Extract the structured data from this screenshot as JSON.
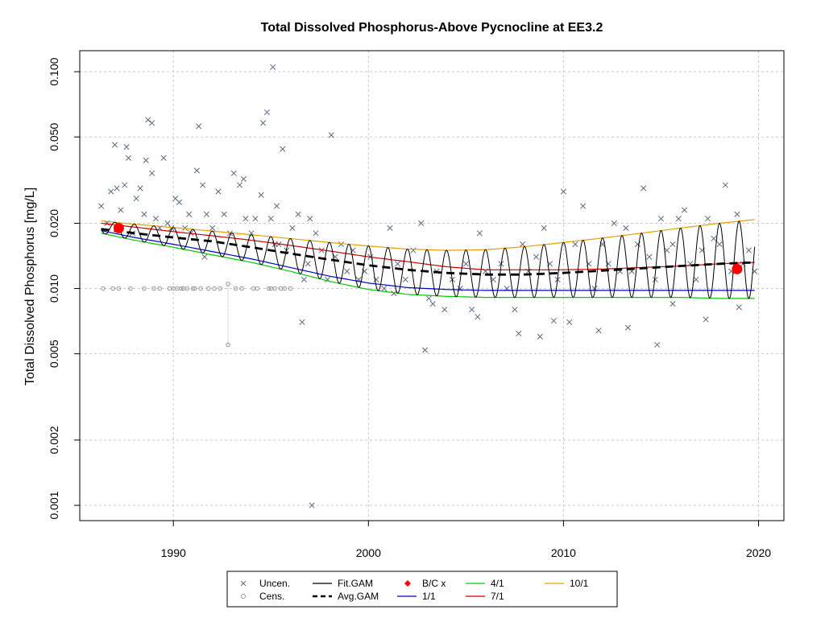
{
  "chart_data": {
    "type": "scatter",
    "title": "Total Dissolved Phosphorus-Above Pycnocline at EE3.2",
    "ylabel": "Total Dissolved Phosphorus [mg/L]",
    "xlabel": "",
    "y_scale": "log",
    "xlim": [
      1985.2,
      2021.3
    ],
    "ylim": [
      0.00085,
      0.125
    ],
    "x_ticks": [
      "1990",
      "2000",
      "2010",
      "2020"
    ],
    "x_tick_values": [
      1990,
      2000,
      2010,
      2020
    ],
    "y_ticks": [
      "0.001",
      "0.002",
      "0.005",
      "0.010",
      "0.020",
      "0.050",
      "0.100"
    ],
    "y_tick_values": [
      0.001,
      0.002,
      0.005,
      0.01,
      0.02,
      0.05,
      0.1
    ],
    "grid": true,
    "legend_position": "bottom",
    "legend": [
      {
        "label": "Uncen.",
        "symbol": "x",
        "color": "#5a6a7e"
      },
      {
        "label": "Fit.GAM",
        "symbol": "line",
        "color": "#000000"
      },
      {
        "label": "B/C x",
        "symbol": "diamond",
        "color": "#ff0000"
      },
      {
        "label": "4/1",
        "symbol": "line",
        "color": "#00cc00"
      },
      {
        "label": "10/1",
        "symbol": "line",
        "color": "#e69f00"
      },
      {
        "label": "Cens.",
        "symbol": "circle",
        "color": "#999999"
      },
      {
        "label": "Avg.GAM",
        "symbol": "dashed",
        "color": "#000000"
      },
      {
        "label": "1/1",
        "symbol": "line",
        "color": "#0000cc"
      },
      {
        "label": "7/1",
        "symbol": "line",
        "color": "#cc0000"
      }
    ],
    "series": [
      {
        "name": "Avg.GAM",
        "color": "#000000",
        "style": "dashed",
        "x": [
          1986.3,
          1988,
          1990,
          1992,
          1994,
          1996,
          1998,
          2000,
          2002,
          2004,
          2006,
          2008,
          2010,
          2012,
          2014,
          2016,
          2018,
          2019.8
        ],
        "y": [
          0.0188,
          0.018,
          0.0172,
          0.0165,
          0.0155,
          0.0145,
          0.0136,
          0.0128,
          0.0122,
          0.0118,
          0.0116,
          0.0116,
          0.0118,
          0.0121,
          0.0124,
          0.0127,
          0.013,
          0.0132
        ]
      },
      {
        "name": "1/1",
        "color": "#0000cc",
        "style": "solid",
        "x": [
          1986.3,
          1988,
          1990,
          1992,
          1994,
          1996,
          1998,
          2000,
          2002,
          2004,
          2006,
          2008,
          2010,
          2012,
          2014,
          2016,
          2018,
          2019.8
        ],
        "y": [
          0.0185,
          0.0172,
          0.016,
          0.0148,
          0.0137,
          0.0125,
          0.0114,
          0.0106,
          0.0101,
          0.0099,
          0.0098,
          0.0098,
          0.0098,
          0.0098,
          0.0098,
          0.0098,
          0.0098,
          0.0098
        ]
      },
      {
        "name": "4/1",
        "color": "#00cc00",
        "style": "solid",
        "x": [
          1986.3,
          1988,
          1990,
          1992,
          1994,
          1996,
          1998,
          2000,
          2002,
          2004,
          2006,
          2008,
          2010,
          2012,
          2014,
          2016,
          2018,
          2019.8
        ],
        "y": [
          0.018,
          0.0167,
          0.0155,
          0.0143,
          0.0132,
          0.012,
          0.0108,
          0.0099,
          0.0094,
          0.0092,
          0.0091,
          0.0091,
          0.0091,
          0.0091,
          0.0091,
          0.0091,
          0.009,
          0.009
        ]
      },
      {
        "name": "7/1",
        "color": "#cc0000",
        "style": "solid",
        "x": [
          1986.3,
          1988,
          1990,
          1992,
          1994,
          1996,
          1998,
          2000,
          2002,
          2004,
          2006,
          2008,
          2010,
          2012,
          2014,
          2016,
          2018,
          2019.8
        ],
        "y": [
          0.02,
          0.0192,
          0.0183,
          0.0175,
          0.0167,
          0.0158,
          0.0149,
          0.014,
          0.0133,
          0.0126,
          0.0122,
          0.0122,
          0.0122,
          0.0123,
          0.0125,
          0.0127,
          0.013,
          0.0132
        ]
      },
      {
        "name": "10/1",
        "color": "#e69f00",
        "style": "solid",
        "x": [
          1986.3,
          1988,
          1990,
          1992,
          1994,
          1996,
          1998,
          2000,
          2002,
          2004,
          2006,
          2008,
          2010,
          2012,
          2014,
          2016,
          2018,
          2019.8
        ],
        "y": [
          0.0205,
          0.0198,
          0.0191,
          0.0184,
          0.0177,
          0.017,
          0.0163,
          0.0157,
          0.0152,
          0.015,
          0.0151,
          0.0156,
          0.0163,
          0.0171,
          0.018,
          0.019,
          0.02,
          0.0208
        ]
      }
    ],
    "fit_gam": {
      "name": "Fit.GAM",
      "color": "#000000",
      "x_start": 1986.3,
      "x_end": 2019.8,
      "period_years": 1.0,
      "lower": "4/1",
      "upper": "10/1"
    },
    "bc_points": {
      "name": "B/C x",
      "color": "#ff0000",
      "x": [
        1987.2,
        2018.9
      ],
      "y": [
        0.019,
        0.0123
      ]
    },
    "uncensored": {
      "name": "Uncen.",
      "color": "#5a6a7e",
      "x": [
        1986.3,
        1986.6,
        1986.8,
        1987.0,
        1987.1,
        1987.3,
        1987.5,
        1987.7,
        1987.9,
        1988.1,
        1988.3,
        1988.5,
        1988.7,
        1988.9,
        1989.1,
        1989.3,
        1989.5,
        1989.7,
        1989.9,
        1990.1,
        1990.3,
        1990.6,
        1990.9,
        1991.2,
        1991.5,
        1991.7,
        1992.0,
        1992.3,
        1992.6,
        1992.9,
        1993.1,
        1993.4,
        1993.7,
        1994.0,
        1994.2,
        1994.5,
        1994.8,
        1995.0,
        1995.2,
        1995.4,
        1995.6,
        1995.8,
        1996.1,
        1996.4,
        1996.7,
        1996.9,
        1997.0,
        1997.3,
        1997.6,
        1997.9,
        1998.1,
        1998.3,
        1998.6,
        1998.9,
        1999.2,
        1999.5,
        1999.8,
        2000.1,
        2000.4,
        2000.8,
        2001.1,
        2001.5,
        2001.9,
        2002.3,
        2002.7,
        2003.1,
        2003.5,
        2003.9,
        2004.3,
        2004.7,
        2005.0,
        2005.3,
        2005.7,
        2006.0,
        2006.4,
        2006.8,
        2007.1,
        2007.5,
        2007.9,
        2008.2,
        2008.6,
        2009.0,
        2009.3,
        2009.7,
        2010.0,
        2010.3,
        2010.6,
        2011.0,
        2011.3,
        2011.6,
        2012.0,
        2012.3,
        2012.6,
        2012.9,
        2013.2,
        2013.5,
        2013.8,
        2014.1,
        2014.4,
        2014.7,
        2015.0,
        2015.3,
        2015.6,
        2015.9,
        2016.2,
        2016.5,
        2016.8,
        2017.1,
        2017.4,
        2017.7,
        2018.0,
        2018.3,
        2018.6,
        2018.9,
        2019.2,
        2019.5,
        2019.8,
        1987.6,
        1988.6,
        1990.8,
        1991.6,
        1993.6,
        1994.6,
        1995.3,
        1996.6,
        2001.3,
        2003.3,
        2005.6,
        2007.7,
        2009.5,
        2011.8,
        2013.3,
        2015.6,
        2017.3,
        2019.0,
        1988.9,
        1991.3,
        1995.1,
        1997.1,
        2002.9,
        2008.8,
        2014.8
      ],
      "y": [
        0.024,
        0.02,
        0.028,
        0.046,
        0.029,
        0.023,
        0.03,
        0.04,
        0.018,
        0.026,
        0.029,
        0.022,
        0.06,
        0.034,
        0.021,
        0.019,
        0.04,
        0.02,
        0.019,
        0.026,
        0.025,
        0.019,
        0.018,
        0.035,
        0.03,
        0.022,
        0.019,
        0.028,
        0.022,
        0.018,
        0.034,
        0.03,
        0.021,
        0.018,
        0.021,
        0.027,
        0.065,
        0.021,
        0.016,
        0.016,
        0.044,
        0.015,
        0.019,
        0.022,
        0.011,
        0.013,
        0.021,
        0.018,
        0.015,
        0.011,
        0.051,
        0.014,
        0.016,
        0.012,
        0.015,
        0.011,
        0.012,
        0.014,
        0.011,
        0.01,
        0.019,
        0.013,
        0.011,
        0.015,
        0.02,
        0.009,
        0.012,
        0.008,
        0.011,
        0.01,
        0.013,
        0.008,
        0.018,
        0.012,
        0.011,
        0.013,
        0.01,
        0.008,
        0.016,
        0.012,
        0.014,
        0.019,
        0.013,
        0.011,
        0.028,
        0.007,
        0.016,
        0.024,
        0.013,
        0.01,
        0.016,
        0.013,
        0.02,
        0.012,
        0.019,
        0.012,
        0.016,
        0.029,
        0.014,
        0.011,
        0.021,
        0.015,
        0.016,
        0.021,
        0.023,
        0.013,
        0.011,
        0.015,
        0.021,
        0.017,
        0.016,
        0.03,
        0.012,
        0.022,
        0.013,
        0.015,
        0.012,
        0.045,
        0.039,
        0.022,
        0.014,
        0.032,
        0.058,
        0.024,
        0.007,
        0.0095,
        0.0085,
        0.0074,
        0.0062,
        0.0071,
        0.0064,
        0.0066,
        0.0085,
        0.0072,
        0.0082,
        0.058,
        0.056,
        0.105,
        0.001,
        0.0052,
        0.006,
        0.0055
      ]
    },
    "censored": {
      "name": "Cens.",
      "color": "#999999",
      "x": [
        1986.4,
        1986.9,
        1987.2,
        1987.8,
        1988.5,
        1989.0,
        1989.3,
        1989.8,
        1990.0,
        1990.2,
        1990.4,
        1990.5,
        1990.7,
        1991.0,
        1991.1,
        1991.4,
        1991.8,
        1992.1,
        1992.4,
        1992.8,
        1993.2,
        1993.5,
        1994.1,
        1994.3,
        1994.9,
        1995.0,
        1995.2,
        1995.5,
        1995.7,
        1996.0
      ],
      "y": [
        0.01,
        0.01,
        0.01,
        0.01,
        0.01,
        0.01,
        0.01,
        0.01,
        0.01,
        0.01,
        0.01,
        0.01,
        0.01,
        0.01,
        0.01,
        0.01,
        0.01,
        0.01,
        0.01,
        0.0105,
        0.01,
        0.01,
        0.01,
        0.01,
        0.01,
        0.01,
        0.01,
        0.01,
        0.01,
        0.01
      ]
    },
    "censored_interval": {
      "x": 1992.8,
      "low": 0.0055,
      "high": 0.0105
    }
  }
}
